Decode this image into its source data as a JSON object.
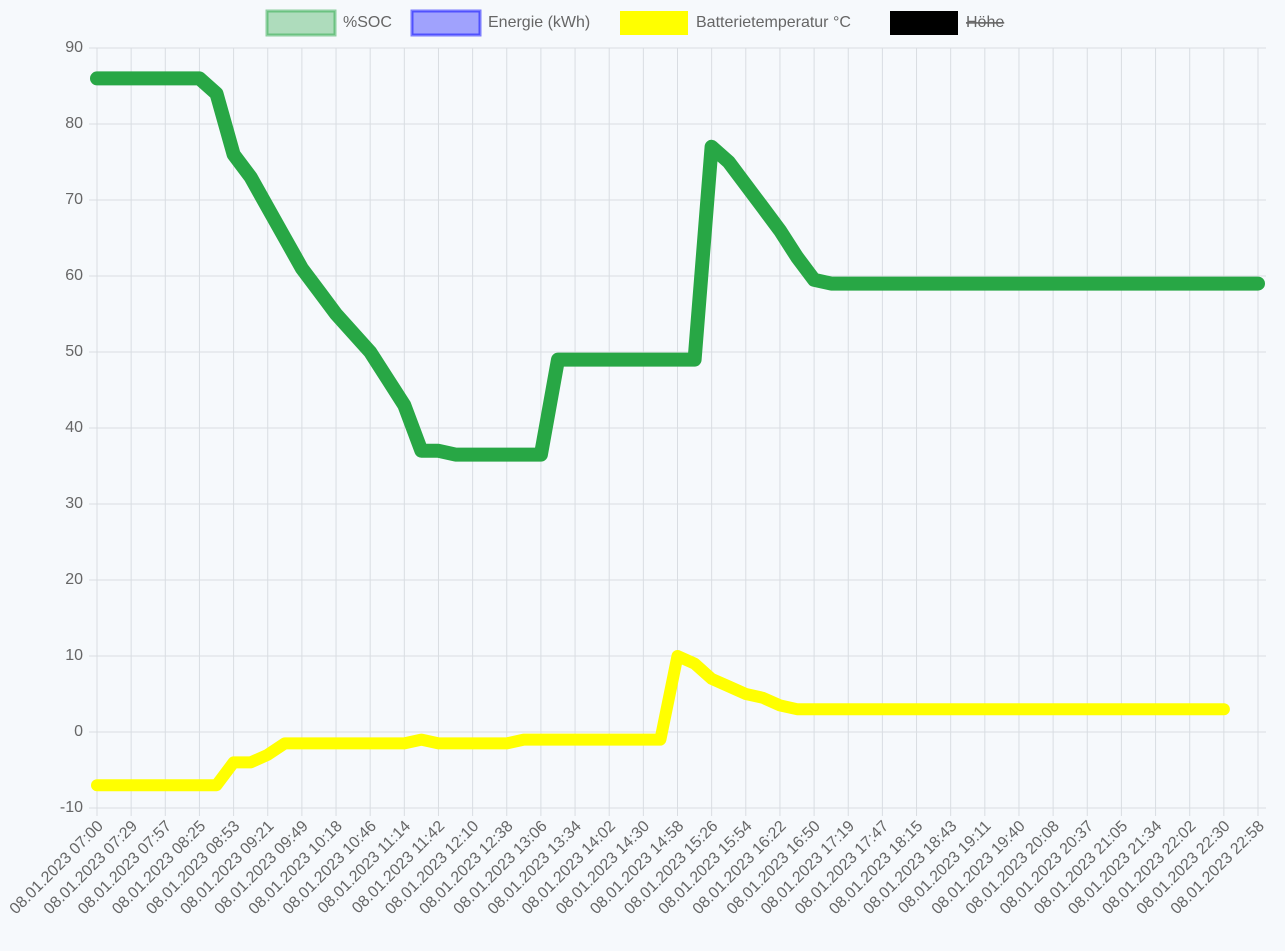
{
  "chart_data": {
    "type": "line",
    "categories": [
      "08.01.2023 07:00",
      null,
      "08.01.2023 07:29",
      null,
      "08.01.2023 07:57",
      null,
      "08.01.2023 08:25",
      null,
      "08.01.2023 08:53",
      null,
      "08.01.2023 09:21",
      null,
      "08.01.2023 09:49",
      null,
      "08.01.2023 10:18",
      null,
      "08.01.2023 10:46",
      null,
      "08.01.2023 11:14",
      null,
      "08.01.2023 11:42",
      null,
      "08.01.2023 12:10",
      null,
      "08.01.2023 12:38",
      null,
      "08.01.2023 13:06",
      null,
      "08.01.2023 13:34",
      null,
      "08.01.2023 14:02",
      null,
      "08.01.2023 14:30",
      null,
      "08.01.2023 14:58",
      null,
      "08.01.2023 15:26",
      null,
      "08.01.2023 15:54",
      null,
      "08.01.2023 16:22",
      null,
      "08.01.2023 16:50",
      null,
      "08.01.2023 17:19",
      null,
      "08.01.2023 17:47",
      null,
      "08.01.2023 18:15",
      null,
      "08.01.2023 18:43",
      null,
      "08.01.2023 19:11",
      null,
      "08.01.2023 19:40",
      null,
      "08.01.2023 20:08",
      null,
      "08.01.2023 20:37",
      null,
      "08.01.2023 21:05",
      null,
      "08.01.2023 21:34",
      null,
      "08.01.2023 22:02",
      null,
      "08.01.2023 22:30",
      null,
      "08.01.2023 22:58"
    ],
    "series": [
      {
        "name": "%SOC",
        "color": "#28a745",
        "values": [
          86,
          86,
          86,
          86,
          86,
          86,
          86,
          84,
          76,
          73,
          69,
          65,
          61,
          58,
          55,
          52.5,
          50,
          46.5,
          43,
          37,
          37,
          36.5,
          36.5,
          36.5,
          36.5,
          36.5,
          36.5,
          49,
          49,
          49,
          49,
          49,
          49,
          49,
          49,
          49,
          77,
          75,
          72,
          69,
          66,
          62.5,
          59.5,
          59,
          59,
          59,
          59,
          59,
          59,
          59,
          59,
          59,
          59,
          59,
          59,
          59,
          59,
          59,
          59,
          59,
          59,
          59,
          59,
          59,
          59,
          59,
          59,
          59,
          59
        ]
      },
      {
        "name": "Energie (kWh)",
        "color": "#0000ff",
        "values": [
          null,
          null,
          null,
          null,
          null,
          null,
          null,
          null,
          null,
          null,
          null,
          null,
          null,
          null,
          null,
          null,
          null,
          null,
          null,
          null,
          null,
          null,
          null,
          null,
          null,
          null,
          null,
          null,
          null,
          null,
          null,
          null,
          null,
          null,
          null,
          null,
          null,
          null,
          null,
          null,
          null,
          null,
          null,
          null,
          null,
          null,
          null,
          null,
          null,
          null,
          null,
          null,
          null,
          null,
          null,
          null,
          null,
          null,
          null,
          null,
          null,
          null,
          null,
          null,
          null,
          null,
          null,
          null,
          null
        ]
      },
      {
        "name": "Batterietemperatur °C",
        "color": "#ffff00",
        "values": [
          -7,
          -7,
          -7,
          -7,
          -7,
          -7,
          -7,
          -7,
          -4,
          -4,
          -3,
          -1.5,
          -1.5,
          -1.5,
          -1.5,
          -1.5,
          -1.5,
          -1.5,
          -1.5,
          -1,
          -1.5,
          -1.5,
          -1.5,
          -1.5,
          -1.5,
          -1,
          -1,
          -1,
          -1,
          -1,
          -1,
          -1,
          -1,
          -1,
          10,
          9,
          7,
          6,
          5,
          4.5,
          3.5,
          3,
          3,
          3,
          3,
          3,
          3,
          3,
          3,
          3,
          3,
          3,
          3,
          3,
          3,
          3,
          3,
          3,
          3,
          3,
          3,
          3,
          3,
          3,
          3,
          3,
          3,
          null,
          null
        ]
      },
      {
        "name": "Höhe",
        "color": "#000000",
        "hidden": true,
        "values": [
          null,
          null,
          null,
          null,
          null,
          null,
          null,
          null,
          null,
          null,
          null,
          null,
          null,
          null,
          null,
          null,
          null,
          null,
          null,
          null,
          null,
          null,
          null,
          null,
          null,
          null,
          null,
          null,
          null,
          null,
          null,
          null,
          null,
          null,
          null,
          null,
          null,
          null,
          null,
          null,
          null,
          null,
          null,
          null,
          null,
          null,
          null,
          null,
          null,
          null,
          null,
          null,
          null,
          null,
          null,
          null,
          null,
          null,
          null,
          null,
          null,
          null,
          null,
          null,
          null,
          null,
          null,
          null,
          null
        ]
      }
    ],
    "ylim": [
      -10,
      90
    ],
    "yticks": [
      -10,
      0,
      10,
      20,
      30,
      40,
      50,
      60,
      70,
      80,
      90
    ],
    "grid": true,
    "legend": "top"
  }
}
